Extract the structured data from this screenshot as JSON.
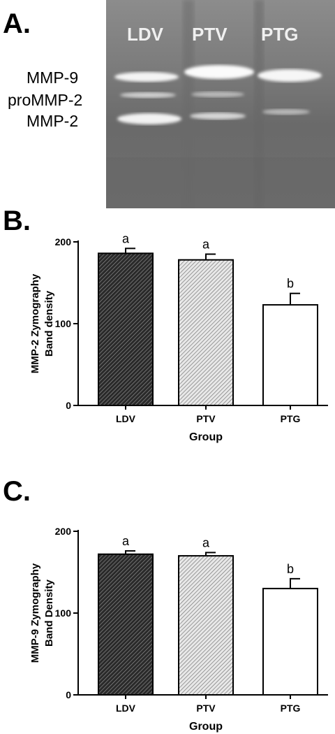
{
  "panels": {
    "a": {
      "letter": "A."
    },
    "b": {
      "letter": "B."
    },
    "c": {
      "letter": "C."
    }
  },
  "gel": {
    "lanes": [
      "LDV",
      "PTV",
      "PTG"
    ],
    "band_labels": [
      "MMP-9",
      "proMMP-2",
      "MMP-2"
    ]
  },
  "colors": {
    "ldv_fill": "#3a3a3a",
    "ptv_fill": "#bdbdbd",
    "ptg_fill": "#ffffff",
    "gel_background": "#767676",
    "band": "#f4f4f4"
  },
  "chart_data": [
    {
      "type": "bar",
      "panel": "B.",
      "categories": [
        "LDV",
        "PTV",
        "PTG"
      ],
      "values": [
        186,
        178,
        123
      ],
      "errors": [
        6,
        7,
        14
      ],
      "significance": [
        "a",
        "a",
        "b"
      ],
      "xlabel": "Group",
      "ylabel": "MMP-2 Zymography Band density",
      "ylabel_lines": [
        "MMP-2 Zymography",
        "Band density"
      ],
      "ylim": [
        0,
        200
      ],
      "yticks": [
        "0",
        "100",
        "200"
      ],
      "grid": false
    },
    {
      "type": "bar",
      "panel": "C.",
      "categories": [
        "LDV",
        "PTV",
        "PTG"
      ],
      "values": [
        172,
        170,
        130
      ],
      "errors": [
        4,
        4,
        12
      ],
      "significance": [
        "a",
        "a",
        "b"
      ],
      "xlabel": "Group",
      "ylabel": "MMP-9 Zymography Band Density",
      "ylabel_lines": [
        "MMP-9 Zymography",
        "Band Density"
      ],
      "ylim": [
        0,
        200
      ],
      "yticks": [
        "0",
        "100",
        "200"
      ],
      "grid": false
    }
  ]
}
